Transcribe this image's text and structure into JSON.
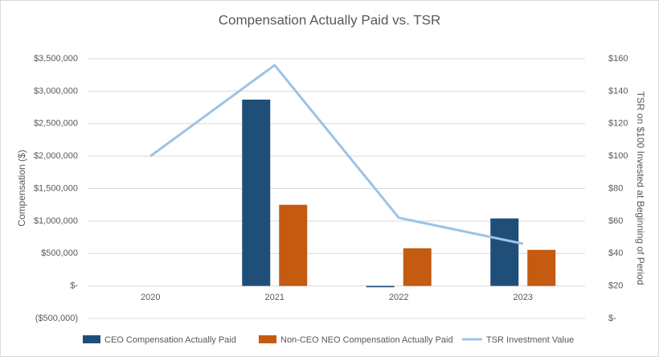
{
  "chart_data": {
    "type": "bar_line",
    "title": "Compensation Actually Paid vs. TSR",
    "y_label": "Compensation ($)",
    "y2_label": "TSR on $100 Invested at Beginning of Period",
    "categories": [
      "2020",
      "2021",
      "2022",
      "2023"
    ],
    "series": [
      {
        "name": "CEO Compensation Actually Paid",
        "type": "bar",
        "color": "#1f4e79",
        "values": [
          null,
          2870000,
          -20000,
          1040000
        ]
      },
      {
        "name": "Non-CEO NEO Compensation Actually Paid",
        "type": "bar",
        "color": "#c55a11",
        "values": [
          null,
          1250000,
          580000,
          556000
        ]
      },
      {
        "name": "TSR Investment Value",
        "type": "line",
        "axis": "y2",
        "color": "#9dc3e6",
        "values": [
          100,
          156,
          62,
          46
        ]
      }
    ],
    "ylim": [
      -500000,
      3500000
    ],
    "yticks": [
      {
        "value": -500000,
        "label": "($500,000)"
      },
      {
        "value": 0,
        "label": "$-"
      },
      {
        "value": 500000,
        "label": "$500,000"
      },
      {
        "value": 1000000,
        "label": "$1,000,000"
      },
      {
        "value": 1500000,
        "label": "$1,500,000"
      },
      {
        "value": 2000000,
        "label": "$2,000,000"
      },
      {
        "value": 2500000,
        "label": "$2,500,000"
      },
      {
        "value": 3000000,
        "label": "$3,000,000"
      },
      {
        "value": 3500000,
        "label": "$3,500,000"
      }
    ],
    "y2lim": [
      0,
      160
    ],
    "y2ticks": [
      {
        "value": 0,
        "label": "$-"
      },
      {
        "value": 20,
        "label": "$20"
      },
      {
        "value": 40,
        "label": "$40"
      },
      {
        "value": 60,
        "label": "$60"
      },
      {
        "value": 80,
        "label": "$80"
      },
      {
        "value": 100,
        "label": "$100"
      },
      {
        "value": 120,
        "label": "$120"
      },
      {
        "value": 140,
        "label": "$140"
      },
      {
        "value": 160,
        "label": "$160"
      }
    ],
    "grid": true
  }
}
